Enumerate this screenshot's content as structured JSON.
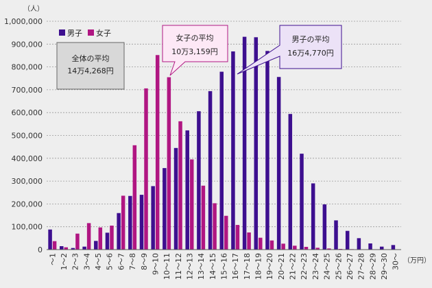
{
  "chart_data": {
    "type": "bar",
    "y_unit": "（人）",
    "x_unit": "（万円）",
    "ylim": [
      0,
      1000000
    ],
    "y_ticks": [
      "0",
      "100,000",
      "200,000",
      "300,000",
      "400,000",
      "500,000",
      "600,000",
      "700,000",
      "800,000",
      "900,000",
      "1,000,000"
    ],
    "grid": true,
    "legend_position": "top-left",
    "categories": [
      "～1",
      "1～2",
      "2～3",
      "3～4",
      "4～5",
      "5～6",
      "6～7",
      "7～8",
      "8～9",
      "9～10",
      "10～11",
      "11～12",
      "12～13",
      "13～14",
      "14～15",
      "15～16",
      "16～17",
      "17～18",
      "18～19",
      "19～20",
      "20～21",
      "21～22",
      "22～23",
      "23～24",
      "24～25",
      "25～26",
      "26～27",
      "27～28",
      "28～29",
      "29～30",
      "30～"
    ],
    "series": [
      {
        "name": "男子",
        "color": "#3d0f8f",
        "values": [
          88000,
          15000,
          7000,
          13000,
          38000,
          74000,
          160000,
          235000,
          240000,
          278000,
          357000,
          445000,
          522000,
          606000,
          694000,
          779000,
          868000,
          932000,
          930000,
          870000,
          756000,
          594000,
          420000,
          290000,
          198000,
          128000,
          82000,
          50000,
          27000,
          13000,
          20000
        ]
      },
      {
        "name": "女子",
        "color": "#b01682",
        "values": [
          37000,
          10000,
          70000,
          116000,
          97000,
          105000,
          236000,
          457000,
          706000,
          852000,
          755000,
          562000,
          395000,
          280000,
          203000,
          148000,
          108000,
          75000,
          52000,
          40000,
          26000,
          17000,
          12000,
          8000,
          5000,
          3000,
          2000,
          1000,
          1000,
          500,
          500
        ]
      }
    ],
    "annotations": [
      {
        "id": "overall",
        "lines": [
          "全体の平均",
          "14万4,268円"
        ]
      },
      {
        "id": "female",
        "lines": [
          "女子の平均",
          "10万3,159円"
        ]
      },
      {
        "id": "male",
        "lines": [
          "男子の平均",
          "16万4,770円"
        ]
      }
    ]
  }
}
